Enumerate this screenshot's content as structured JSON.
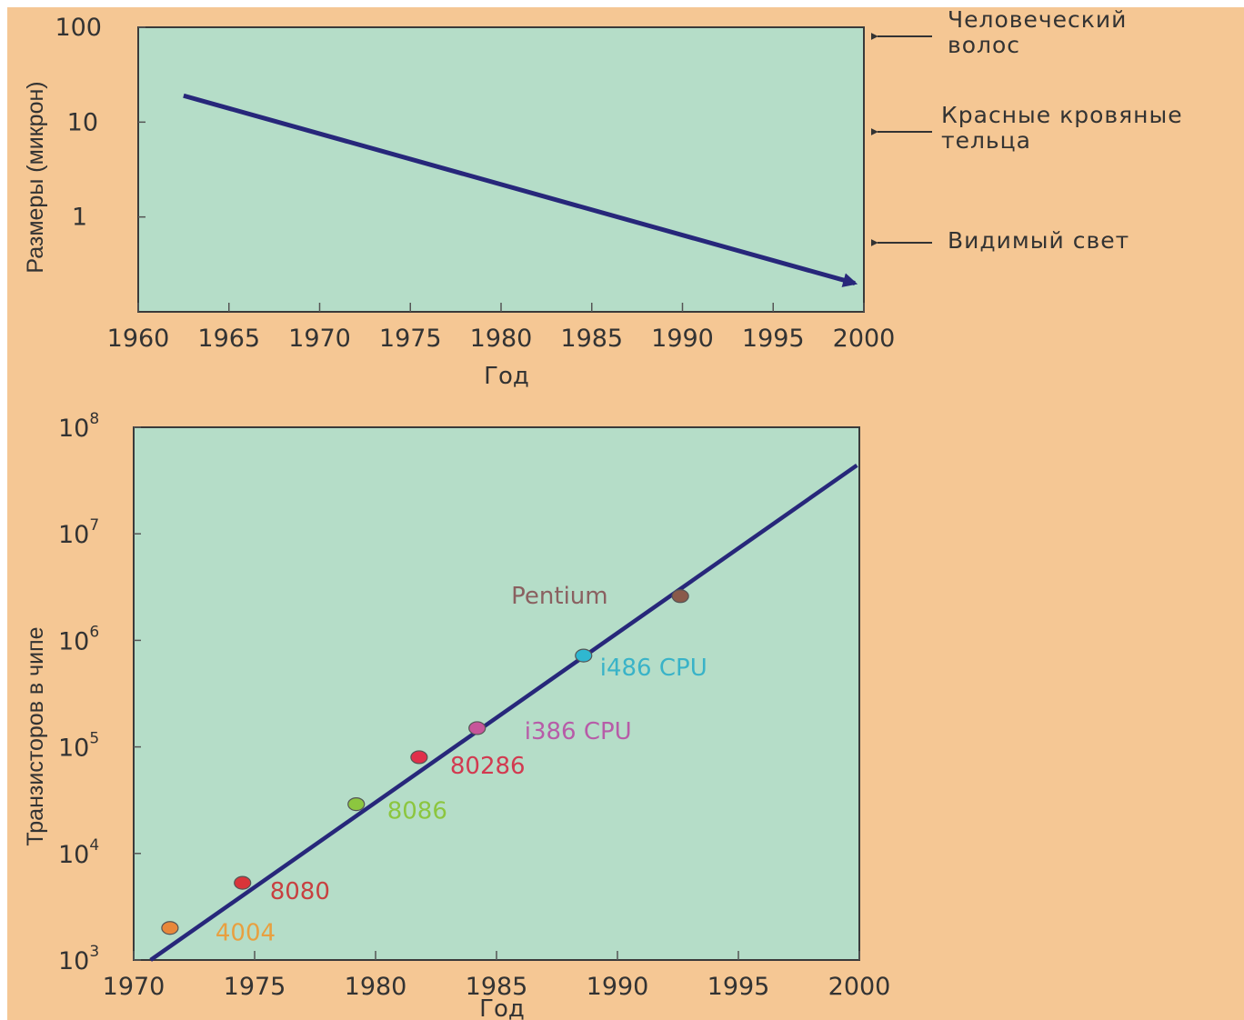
{
  "chart_data": [
    {
      "type": "line",
      "title": "",
      "xlabel": "Год",
      "ylabel": "Размеры (микрон)",
      "x_ticks": [
        "1960",
        "1965",
        "1970",
        "1975",
        "1980",
        "1985",
        "1990",
        "1995",
        "2000"
      ],
      "y_scale": "log",
      "y_ticks": [
        "100",
        "10",
        "1"
      ],
      "xlim": [
        1960,
        2000
      ],
      "ylim": [
        0.1,
        100
      ],
      "grid": false,
      "series": [
        {
          "x": [
            1962.5,
            1999.5
          ],
          "y": [
            19,
            0.2
          ]
        }
      ],
      "reference_labels": [
        {
          "text": "Человеческий\nволос",
          "value": 100
        },
        {
          "text": "Красные кровяные\nтельца",
          "value": 8
        },
        {
          "text": "Видимый свет",
          "value": 0.5
        }
      ],
      "colors": {
        "plot_bg": "#b5ddc8",
        "line": "#27277a",
        "page_bg": "#f5c794"
      }
    },
    {
      "type": "scatter",
      "title": "",
      "xlabel": "Год",
      "ylabel": "Транзисторов в чипе",
      "x_ticks": [
        "1970",
        "1975",
        "1980",
        "1985",
        "1990",
        "1995",
        "2000"
      ],
      "y_scale": "log",
      "y_ticks": [
        {
          "base": "10",
          "exp": "8"
        },
        {
          "base": "10",
          "exp": "7"
        },
        {
          "base": "10",
          "exp": "6"
        },
        {
          "base": "10",
          "exp": "5"
        },
        {
          "base": "10",
          "exp": "4"
        },
        {
          "base": "10",
          "exp": "3"
        }
      ],
      "xlim": [
        1970,
        2000
      ],
      "ylim": [
        1000,
        100000000
      ],
      "grid": false,
      "trend_line": {
        "x": [
          1970.7,
          1999.9
        ],
        "y": [
          1000,
          44000000
        ]
      },
      "points": [
        {
          "name": "4004",
          "x": 1971.5,
          "y": 2000,
          "color": "#e8873a",
          "label_color": "#e8a040"
        },
        {
          "name": "8080",
          "x": 1974.5,
          "y": 5300,
          "color": "#d9353a",
          "label_color": "#c84040"
        },
        {
          "name": "8086",
          "x": 1979.2,
          "y": 29000,
          "color": "#8cc63f",
          "label_color": "#8cc63f"
        },
        {
          "name": "80286",
          "x": 1981.8,
          "y": 80000,
          "color": "#e0304a",
          "label_color": "#d23a50"
        },
        {
          "name": "i386 CPU",
          "x": 1984.2,
          "y": 150000,
          "color": "#c7559a",
          "label_color": "#b75ca8"
        },
        {
          "name": "i486 CPU",
          "x": 1988.6,
          "y": 720000,
          "color": "#2fb7d0",
          "label_color": "#39b3c8"
        },
        {
          "name": "Pentium",
          "x": 1992.6,
          "y": 2600000,
          "color": "#8a5a4a",
          "label_color": "#8a6060"
        }
      ],
      "colors": {
        "plot_bg": "#b5ddc8",
        "line": "#27277a"
      }
    }
  ]
}
